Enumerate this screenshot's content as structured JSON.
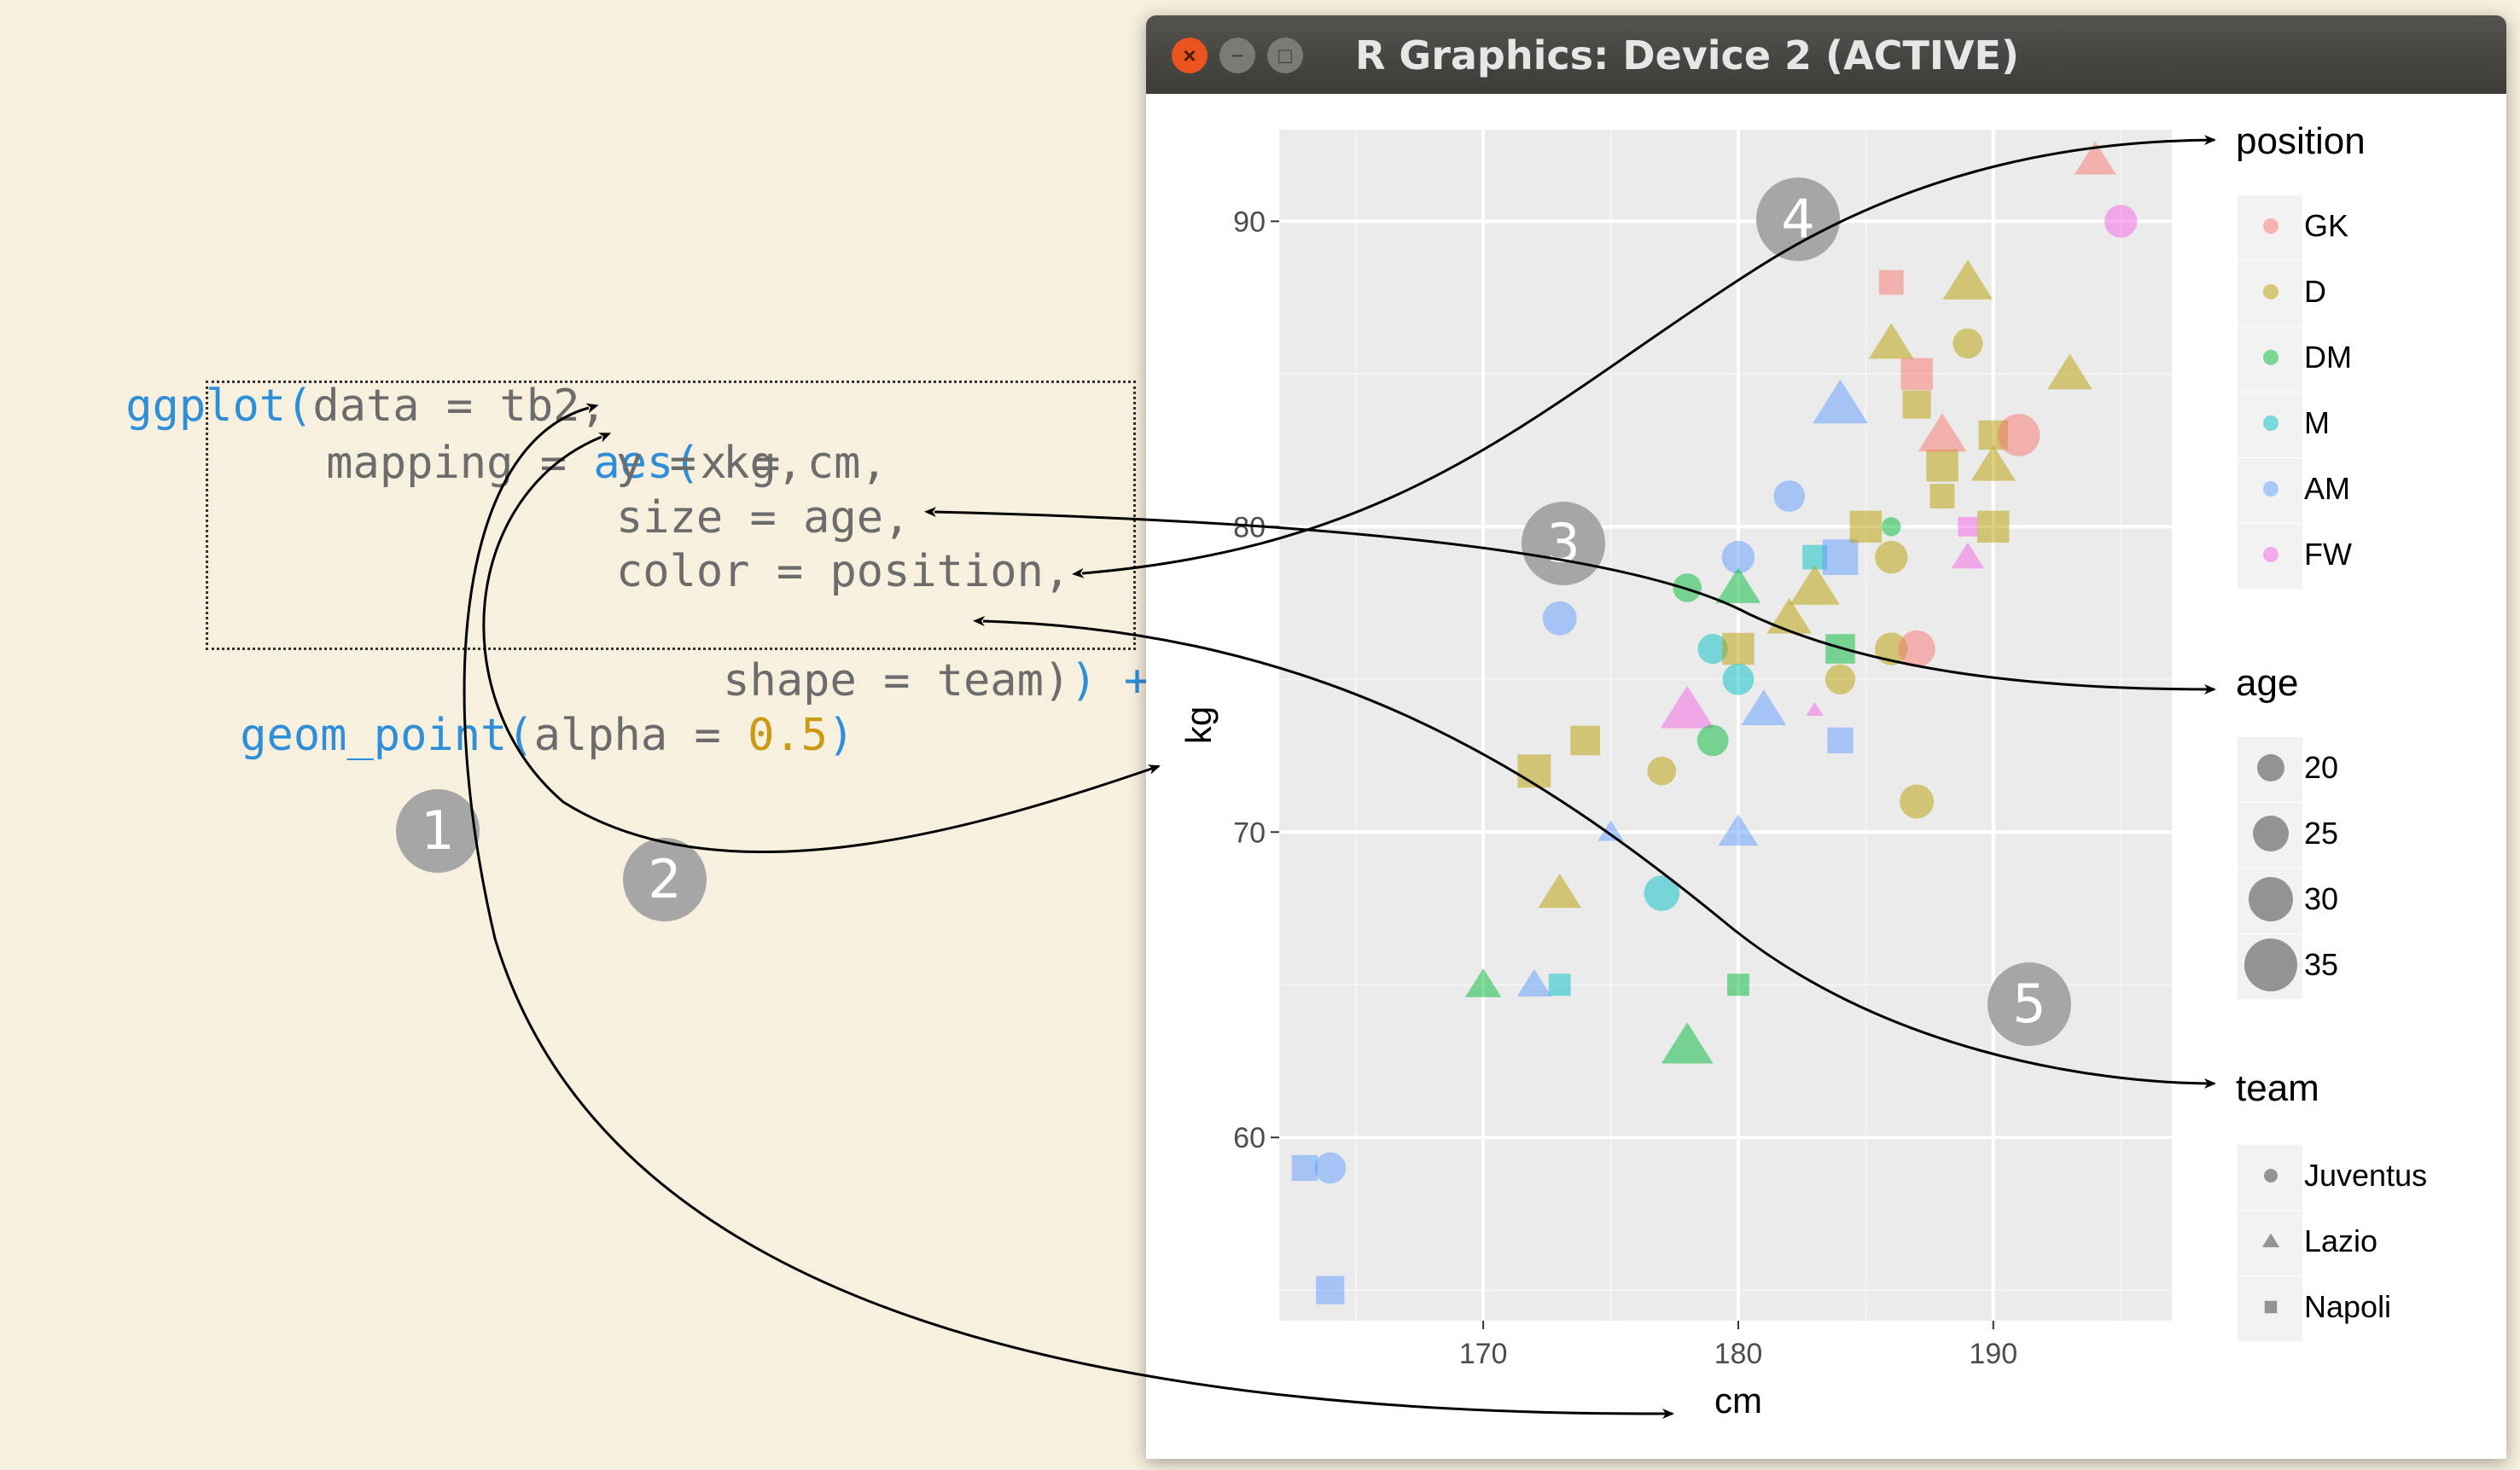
{
  "code": {
    "line1": {
      "fn": "ggplot(",
      "arg": "data = tb2,"
    },
    "line2": {
      "arg": "mapping = ",
      "fn": "aes(",
      "rest": "x = cm,"
    },
    "line3": "y = kg,",
    "line4": "size = age,",
    "line5": "color = position,",
    "line6": {
      "arg": "shape = team)",
      "op": ") +"
    },
    "line7": {
      "fn": "geom_point(",
      "arg": "alpha = ",
      "num": "0.5",
      "close": ")"
    }
  },
  "badges": [
    "1",
    "2",
    "3",
    "4",
    "5"
  ],
  "window": {
    "title": "R Graphics: Device 2 (ACTIVE)",
    "close_label": "×",
    "minimize_label": "−",
    "maximize_label": "□"
  },
  "colors": {
    "background": "#f8f0de",
    "code_keyword": "#2f8ed8",
    "code_number": "#c99a12",
    "panel": "#ebebeb",
    "GK": "#f8766d",
    "D": "#b79f00",
    "DM": "#00ba38",
    "M": "#00bfc4",
    "AM": "#619cff",
    "FW": "#f564e3"
  },
  "chart_data": {
    "type": "scatter",
    "xlabel": "cm",
    "ylabel": "kg",
    "xlim": [
      162,
      197
    ],
    "ylim": [
      54,
      93
    ],
    "x_ticks": [
      170,
      180,
      190
    ],
    "y_ticks": [
      60,
      70,
      80,
      90
    ],
    "alpha": 0.5,
    "grid": true,
    "legends": {
      "position": {
        "title": "position",
        "items": [
          "GK",
          "D",
          "DM",
          "M",
          "AM",
          "FW"
        ]
      },
      "age": {
        "title": "age",
        "items": [
          "20",
          "25",
          "30",
          "35"
        ]
      },
      "team": {
        "title": "team",
        "items": [
          "Juventus",
          "Lazio",
          "Napoli"
        ]
      },
      "placement": "right"
    },
    "points": [
      {
        "x": 163,
        "y": 59,
        "position": "AM",
        "team": "Napoli",
        "age": 25
      },
      {
        "x": 164,
        "y": 59,
        "position": "AM",
        "team": "Juventus",
        "age": 27
      },
      {
        "x": 164,
        "y": 55,
        "position": "AM",
        "team": "Napoli",
        "age": 27
      },
      {
        "x": 170,
        "y": 65,
        "position": "DM",
        "team": "Lazio",
        "age": 25
      },
      {
        "x": 172,
        "y": 65,
        "position": "AM",
        "team": "Lazio",
        "age": 24
      },
      {
        "x": 173,
        "y": 65,
        "position": "M",
        "team": "Napoli",
        "age": 22
      },
      {
        "x": 173,
        "y": 68,
        "position": "D",
        "team": "Lazio",
        "age": 29
      },
      {
        "x": 172,
        "y": 72,
        "position": "D",
        "team": "Napoli",
        "age": 31
      },
      {
        "x": 173,
        "y": 77,
        "position": "AM",
        "team": "Juventus",
        "age": 29
      },
      {
        "x": 174,
        "y": 73,
        "position": "D",
        "team": "Napoli",
        "age": 28
      },
      {
        "x": 175,
        "y": 70,
        "position": "AM",
        "team": "Lazio",
        "age": 19
      },
      {
        "x": 177,
        "y": 72,
        "position": "D",
        "team": "Juventus",
        "age": 25
      },
      {
        "x": 177,
        "y": 68,
        "position": "M",
        "team": "Juventus",
        "age": 30
      },
      {
        "x": 178,
        "y": 74,
        "position": "FW",
        "team": "Lazio",
        "age": 35
      },
      {
        "x": 178,
        "y": 78,
        "position": "DM",
        "team": "Juventus",
        "age": 25
      },
      {
        "x": 179,
        "y": 73,
        "position": "DM",
        "team": "Juventus",
        "age": 27
      },
      {
        "x": 179,
        "y": 76,
        "position": "M",
        "team": "Juventus",
        "age": 26
      },
      {
        "x": 180,
        "y": 79,
        "position": "AM",
        "team": "Juventus",
        "age": 28
      },
      {
        "x": 180,
        "y": 78,
        "position": "DM",
        "team": "Lazio",
        "age": 30
      },
      {
        "x": 180,
        "y": 76,
        "position": "D",
        "team": "Napoli",
        "age": 30
      },
      {
        "x": 180,
        "y": 75,
        "position": "M",
        "team": "Juventus",
        "age": 27
      },
      {
        "x": 180,
        "y": 70,
        "position": "AM",
        "team": "Lazio",
        "age": 27
      },
      {
        "x": 180,
        "y": 65,
        "position": "DM",
        "team": "Napoli",
        "age": 22
      },
      {
        "x": 178,
        "y": 63,
        "position": "DM",
        "team": "Lazio",
        "age": 34
      },
      {
        "x": 181,
        "y": 74,
        "position": "AM",
        "team": "Lazio",
        "age": 30
      },
      {
        "x": 182,
        "y": 77,
        "position": "D",
        "team": "Lazio",
        "age": 30
      },
      {
        "x": 182,
        "y": 81,
        "position": "AM",
        "team": "Juventus",
        "age": 27
      },
      {
        "x": 183,
        "y": 79,
        "position": "M",
        "team": "Napoli",
        "age": 24
      },
      {
        "x": 183,
        "y": 78,
        "position": "D",
        "team": "Lazio",
        "age": 33
      },
      {
        "x": 184,
        "y": 79,
        "position": "AM",
        "team": "Napoli",
        "age": 33
      },
      {
        "x": 184,
        "y": 75,
        "position": "D",
        "team": "Juventus",
        "age": 26
      },
      {
        "x": 184,
        "y": 76,
        "position": "DM",
        "team": "Napoli",
        "age": 28
      },
      {
        "x": 184,
        "y": 73,
        "position": "AM",
        "team": "Napoli",
        "age": 25
      },
      {
        "x": 183,
        "y": 74,
        "position": "FW",
        "team": "Lazio",
        "age": 14
      },
      {
        "x": 184,
        "y": 84,
        "position": "AM",
        "team": "Lazio",
        "age": 36
      },
      {
        "x": 185,
        "y": 80,
        "position": "D",
        "team": "Napoli",
        "age": 30
      },
      {
        "x": 186,
        "y": 79,
        "position": "D",
        "team": "Juventus",
        "age": 28
      },
      {
        "x": 186,
        "y": 80,
        "position": "DM",
        "team": "Juventus",
        "age": 18
      },
      {
        "x": 186,
        "y": 76,
        "position": "D",
        "team": "Juventus",
        "age": 28
      },
      {
        "x": 186,
        "y": 86,
        "position": "D",
        "team": "Lazio",
        "age": 30
      },
      {
        "x": 186,
        "y": 88,
        "position": "GK",
        "team": "Napoli",
        "age": 24
      },
      {
        "x": 187,
        "y": 76,
        "position": "GK",
        "team": "Juventus",
        "age": 31
      },
      {
        "x": 187,
        "y": 71,
        "position": "D",
        "team": "Juventus",
        "age": 29
      },
      {
        "x": 187,
        "y": 85,
        "position": "GK",
        "team": "Napoli",
        "age": 30
      },
      {
        "x": 187,
        "y": 84,
        "position": "D",
        "team": "Napoli",
        "age": 27
      },
      {
        "x": 188,
        "y": 82,
        "position": "D",
        "team": "Napoli",
        "age": 30
      },
      {
        "x": 188,
        "y": 81,
        "position": "D",
        "team": "Napoli",
        "age": 24
      },
      {
        "x": 188,
        "y": 83,
        "position": "GK",
        "team": "Lazio",
        "age": 32
      },
      {
        "x": 189,
        "y": 88,
        "position": "D",
        "team": "Lazio",
        "age": 33
      },
      {
        "x": 189,
        "y": 86,
        "position": "D",
        "team": "Juventus",
        "age": 26
      },
      {
        "x": 189,
        "y": 80,
        "position": "FW",
        "team": "Napoli",
        "age": 20
      },
      {
        "x": 189,
        "y": 79,
        "position": "FW",
        "team": "Lazio",
        "age": 23
      },
      {
        "x": 190,
        "y": 83,
        "position": "D",
        "team": "Napoli",
        "age": 28
      },
      {
        "x": 190,
        "y": 82,
        "position": "D",
        "team": "Lazio",
        "age": 30
      },
      {
        "x": 190,
        "y": 80,
        "position": "D",
        "team": "Napoli",
        "age": 30
      },
      {
        "x": 191,
        "y": 83,
        "position": "GK",
        "team": "Juventus",
        "age": 35
      },
      {
        "x": 193,
        "y": 85,
        "position": "D",
        "team": "Lazio",
        "age": 30
      },
      {
        "x": 194,
        "y": 92,
        "position": "GK",
        "team": "Lazio",
        "age": 28
      },
      {
        "x": 195,
        "y": 90,
        "position": "FW",
        "team": "Juventus",
        "age": 28
      }
    ]
  }
}
